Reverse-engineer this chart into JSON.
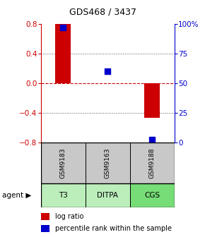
{
  "title": "GDS468 / 3437",
  "samples": [
    "GSM9183",
    "GSM9163",
    "GSM9188"
  ],
  "agents": [
    "T3",
    "DITPA",
    "CGS"
  ],
  "log_ratios": [
    0.8,
    0.0,
    -0.47
  ],
  "percentile_ranks": [
    97,
    60,
    2
  ],
  "ylim_left": [
    -0.8,
    0.8
  ],
  "ylim_right": [
    0,
    100
  ],
  "yticks_left": [
    -0.8,
    -0.4,
    0,
    0.4,
    0.8
  ],
  "yticks_right": [
    0,
    25,
    50,
    75,
    100
  ],
  "ytick_labels_right": [
    "0",
    "25",
    "50",
    "75",
    "100%"
  ],
  "dotted_lines": [
    -0.4,
    0.4
  ],
  "zero_line": 0,
  "bar_color": "#cc0000",
  "dot_color": "#0000cc",
  "sample_box_color": "#c8c8c8",
  "agent_box_color_light": "#bbeebb",
  "agent_box_color_medium": "#77dd77",
  "background_color": "#ffffff",
  "bar_width": 0.35,
  "dot_size": 28,
  "left_axis_color": "#cc0000",
  "right_axis_color": "#0000cc",
  "grid_color": "#555555",
  "zero_line_color": "#cc0000"
}
